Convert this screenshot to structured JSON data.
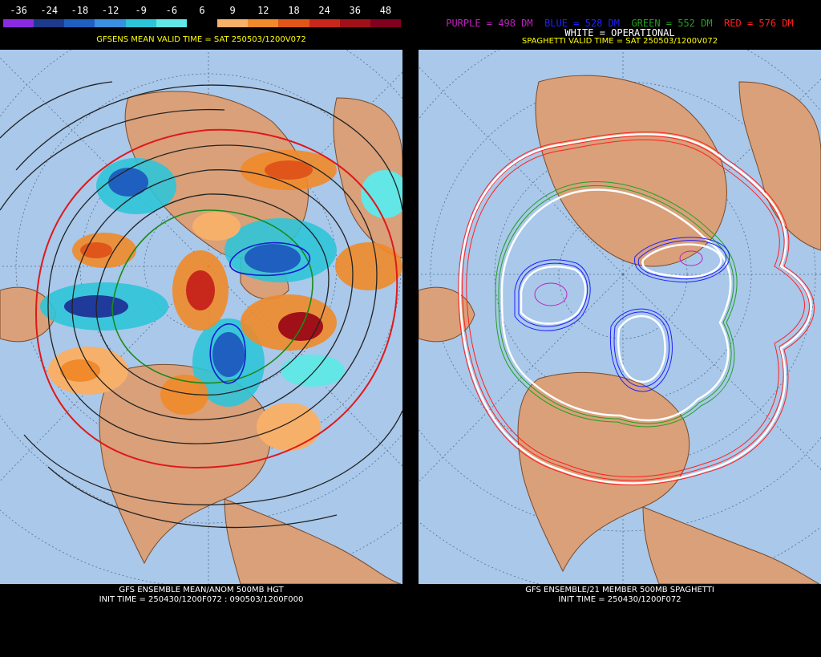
{
  "left": {
    "scale_ticks": [
      "-36",
      "-24",
      "-18",
      "-12",
      "-9",
      "-6",
      "6",
      "9",
      "12",
      "18",
      "24",
      "36",
      "48"
    ],
    "scale_colors": [
      "#8a2be2",
      "#1e3a8a",
      "#1f5fbf",
      "#3b8fe0",
      "#2ec4d8",
      "#63e6e6",
      "#000000",
      "#f7b06a",
      "#f08a2a",
      "#e0561a",
      "#c8281c",
      "#a01018",
      "#800020"
    ],
    "valid_time": "GFSENS MEAN VALID TIME = SAT 250503/1200V072",
    "footer_line1": "GFS ENSEMBLE MEAN/ANOM 500MB HGT",
    "footer_line2": "INIT TIME = 250430/1200F072 : 090503/1200F000"
  },
  "right": {
    "legend_purple": "PURPLE = 498 DM",
    "legend_blue": "BLUE = 528 DM",
    "legend_green": "GREEN = 552 DM",
    "legend_red": "RED = 576 DM",
    "legend_white": "WHITE = OPERATIONAL",
    "valid_time": "SPAGHETTI VALID TIME = SAT 250503/1200V072",
    "footer_line1": "GFS ENSEMBLE/21 MEMBER 500MB SPAGHETTI",
    "footer_line2": "INIT TIME = 250430/1200F072",
    "colors": {
      "purple": "#c020c0",
      "blue": "#2020ff",
      "green": "#20a020",
      "red": "#ff2020",
      "white": "#ffffff"
    }
  }
}
